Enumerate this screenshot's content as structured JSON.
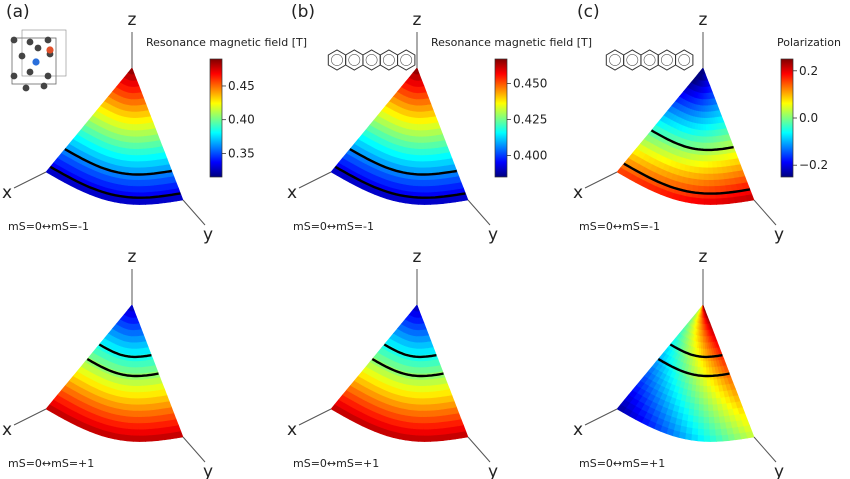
{
  "figure": {
    "panels": [
      {
        "label": "(a)",
        "molecule_icon": "nv-center-lattice-icon",
        "colorbar": {
          "title": "Resonance magnetic field [T]",
          "ticks": [
            "0.45",
            "0.40",
            "0.35"
          ],
          "tick_values": [
            0.45,
            0.4,
            0.35
          ],
          "range": [
            0.315,
            0.49
          ],
          "colormap": "jet"
        },
        "rows": [
          {
            "transition": "mS=0↔mS=-1",
            "axes": [
              "x",
              "y",
              "z"
            ],
            "low_at": "bottom",
            "contours": 2
          },
          {
            "transition": "mS=0↔mS=+1",
            "axes": [
              "x",
              "y",
              "z"
            ],
            "low_at": "top",
            "contours": 2
          }
        ]
      },
      {
        "label": "(b)",
        "molecule_icon": "pentacene-molecule-icon",
        "colorbar": {
          "title": "Resonance magnetic field [T]",
          "ticks": [
            "0.450",
            "0.425",
            "0.400"
          ],
          "tick_values": [
            0.45,
            0.425,
            0.4
          ],
          "range": [
            0.385,
            0.467
          ],
          "colormap": "jet"
        },
        "rows": [
          {
            "transition": "mS=0↔mS=-1",
            "axes": [
              "x",
              "y",
              "z"
            ],
            "low_at": "bottom",
            "contours": 2
          },
          {
            "transition": "mS=0↔mS=+1",
            "axes": [
              "x",
              "y",
              "z"
            ],
            "low_at": "top",
            "contours": 2
          }
        ]
      },
      {
        "label": "(c)",
        "molecule_icon": "pentacene-molecule-icon",
        "colorbar": {
          "title": "Polarization",
          "ticks": [
            "0.2",
            "0.0",
            "−0.2"
          ],
          "tick_values": [
            0.2,
            0.0,
            -0.2
          ],
          "range": [
            -0.25,
            0.25
          ],
          "colormap": "jet"
        },
        "rows": [
          {
            "transition": "mS=0↔mS=-1",
            "axes": [
              "x",
              "y",
              "z"
            ],
            "low_at": "top",
            "contours": 2
          },
          {
            "transition": "mS=0↔mS=+1",
            "axes": [
              "x",
              "y",
              "z"
            ],
            "low_at": "left",
            "contours": 2
          }
        ]
      }
    ]
  },
  "colors": {
    "text": "#222222",
    "contour": "#000000"
  }
}
